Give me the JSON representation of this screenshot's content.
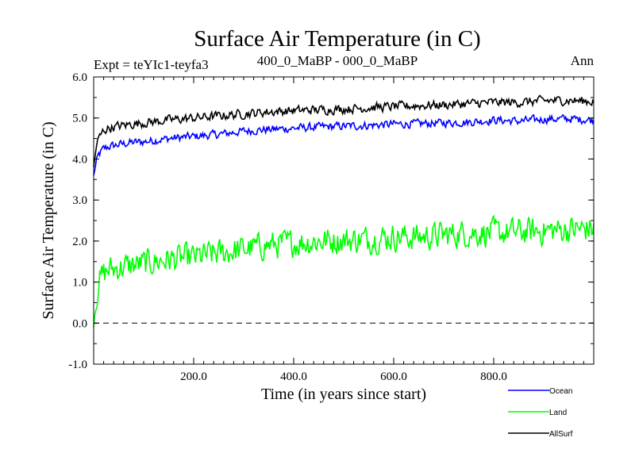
{
  "chart_data": {
    "type": "line",
    "title": "Surface Air Temperature (in C)",
    "subtitle_left": "Expt = teYIc1-teyfa3",
    "subtitle_center": "400_0_MaBP - 000_0_MaBP",
    "subtitle_right": "Ann",
    "xlabel": "Time (in years since start)",
    "ylabel": "Surface Air Temperature (in C)",
    "xlim": [
      0,
      1000
    ],
    "ylim": [
      -1.0,
      6.0
    ],
    "x_ticks": [
      {
        "value": 200,
        "label": "200.0"
      },
      {
        "value": 400,
        "label": "400.0"
      },
      {
        "value": 600,
        "label": "600.0"
      },
      {
        "value": 800,
        "label": "800.0"
      }
    ],
    "y_ticks": [
      {
        "value": -1.0,
        "label": "-1.0"
      },
      {
        "value": 0.0,
        "label": "0.0"
      },
      {
        "value": 1.0,
        "label": "1.0"
      },
      {
        "value": 2.0,
        "label": "2.0"
      },
      {
        "value": 3.0,
        "label": "3.0"
      },
      {
        "value": 4.0,
        "label": "4.0"
      },
      {
        "value": 5.0,
        "label": "5.0"
      },
      {
        "value": 6.0,
        "label": "6.0"
      }
    ],
    "reference_line": {
      "y": 0.0,
      "style": "dashed"
    },
    "series": [
      {
        "name": "Ocean",
        "color": "#0000ff",
        "x": [
          0,
          5,
          10,
          20,
          30,
          50,
          75,
          100,
          150,
          200,
          250,
          300,
          350,
          400,
          450,
          500,
          550,
          600,
          650,
          700,
          750,
          800,
          850,
          900,
          950,
          1000
        ],
        "values": [
          3.6,
          3.9,
          4.1,
          4.25,
          4.3,
          4.35,
          4.4,
          4.42,
          4.5,
          4.55,
          4.6,
          4.68,
          4.72,
          4.75,
          4.78,
          4.8,
          4.82,
          4.85,
          4.86,
          4.88,
          4.9,
          4.95,
          4.92,
          4.97,
          4.98,
          4.95
        ]
      },
      {
        "name": "Land",
        "color": "#00ff00",
        "x": [
          0,
          5,
          10,
          20,
          30,
          50,
          75,
          100,
          150,
          200,
          250,
          300,
          350,
          400,
          450,
          500,
          550,
          600,
          650,
          700,
          750,
          800,
          850,
          900,
          950,
          1000
        ],
        "values": [
          -0.1,
          0.6,
          1.0,
          1.2,
          1.3,
          1.35,
          1.4,
          1.45,
          1.55,
          1.6,
          1.7,
          1.8,
          1.9,
          1.95,
          2.0,
          2.02,
          2.05,
          2.1,
          2.1,
          2.15,
          2.2,
          2.2,
          2.22,
          2.25,
          2.28,
          2.3
        ]
      },
      {
        "name": "AllSurf",
        "color": "#000000",
        "x": [
          0,
          5,
          10,
          20,
          30,
          50,
          75,
          100,
          150,
          200,
          250,
          300,
          350,
          400,
          450,
          500,
          550,
          600,
          650,
          700,
          750,
          800,
          850,
          900,
          950,
          1000
        ],
        "values": [
          3.8,
          4.3,
          4.5,
          4.7,
          4.75,
          4.8,
          4.85,
          4.88,
          4.95,
          5.0,
          5.05,
          5.1,
          5.15,
          5.18,
          5.2,
          5.22,
          5.25,
          5.28,
          5.3,
          5.32,
          5.35,
          5.38,
          5.38,
          5.42,
          5.43,
          5.4
        ]
      }
    ],
    "legend": {
      "placement": "bottom-right",
      "entries": [
        {
          "label": "Ocean",
          "color": "#0000ff"
        },
        {
          "label": "Land",
          "color": "#00ff00"
        },
        {
          "label": "AllSurf",
          "color": "#000000"
        }
      ]
    }
  }
}
